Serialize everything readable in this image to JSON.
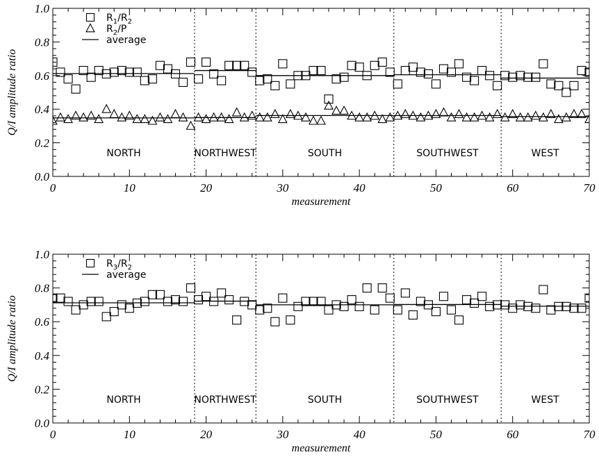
{
  "chart_data": [
    {
      "type": "scatter",
      "xlabel": "measurement",
      "ylabel": "Q/I amplitude ratio",
      "xlim": [
        0,
        70
      ],
      "ylim": [
        0.0,
        1.0
      ],
      "xticks": [
        "0",
        "10",
        "20",
        "30",
        "40",
        "50",
        "60",
        "70"
      ],
      "yticks": [
        "0.0",
        "0.2",
        "0.4",
        "0.6",
        "0.8",
        "1.0"
      ],
      "legend": [
        {
          "marker": "square",
          "label": "R",
          "sub1": "1",
          "sep": "/R",
          "sub2": "2"
        },
        {
          "marker": "triangle",
          "label": "R",
          "sub1": "2",
          "sep": "/P",
          "sub2": ""
        },
        {
          "marker": "line",
          "label": "average"
        }
      ],
      "regions": [
        {
          "label": "NORTH",
          "from": 0,
          "to": 18.5
        },
        {
          "label": "NORTHWEST",
          "from": 18.5,
          "to": 26.5
        },
        {
          "label": "SOUTH",
          "from": 26.5,
          "to": 44.5
        },
        {
          "label": "SOUTHWEST",
          "from": 44.5,
          "to": 58.5
        },
        {
          "label": "WEST",
          "from": 58.5,
          "to": 70
        }
      ],
      "series": [
        {
          "name": "R1/R2",
          "marker": "square",
          "x": [
            0,
            1,
            2,
            3,
            4,
            5,
            6,
            7,
            8,
            9,
            10,
            11,
            12,
            13,
            14,
            15,
            16,
            17,
            18,
            19,
            20,
            21,
            22,
            23,
            24,
            25,
            26,
            27,
            28,
            29,
            30,
            31,
            32,
            33,
            34,
            35,
            36,
            37,
            38,
            39,
            40,
            41,
            42,
            43,
            44,
            45,
            46,
            47,
            48,
            49,
            50,
            51,
            52,
            53,
            54,
            55,
            56,
            57,
            58,
            59,
            60,
            61,
            62,
            63,
            64,
            65,
            66,
            67,
            68,
            69,
            70
          ],
          "y": [
            0.68,
            0.62,
            0.58,
            0.52,
            0.63,
            0.59,
            0.63,
            0.61,
            0.62,
            0.63,
            0.62,
            0.62,
            0.57,
            0.58,
            0.66,
            0.64,
            0.61,
            0.56,
            0.68,
            0.58,
            0.68,
            0.61,
            0.57,
            0.66,
            0.66,
            0.66,
            0.62,
            0.57,
            0.58,
            0.54,
            0.67,
            0.55,
            0.6,
            0.6,
            0.63,
            0.63,
            0.46,
            0.58,
            0.59,
            0.66,
            0.65,
            0.6,
            0.66,
            0.68,
            0.62,
            0.55,
            0.63,
            0.65,
            0.62,
            0.61,
            0.55,
            0.64,
            0.62,
            0.67,
            0.59,
            0.57,
            0.63,
            0.6,
            0.54,
            0.6,
            0.59,
            0.6,
            0.59,
            0.59,
            0.67,
            0.55,
            0.54,
            0.5,
            0.54,
            0.63,
            0.62
          ]
        },
        {
          "name": "R2/P",
          "marker": "triangle",
          "x": [
            0,
            1,
            2,
            3,
            4,
            5,
            6,
            7,
            8,
            9,
            10,
            11,
            12,
            13,
            14,
            15,
            16,
            17,
            18,
            19,
            20,
            21,
            22,
            23,
            24,
            25,
            26,
            27,
            28,
            29,
            30,
            31,
            32,
            33,
            34,
            35,
            36,
            37,
            38,
            39,
            40,
            41,
            42,
            43,
            44,
            45,
            46,
            47,
            48,
            49,
            50,
            51,
            52,
            53,
            54,
            55,
            56,
            57,
            58,
            59,
            60,
            61,
            62,
            63,
            64,
            65,
            66,
            67,
            68,
            69,
            70
          ],
          "y": [
            0.33,
            0.35,
            0.34,
            0.36,
            0.35,
            0.36,
            0.34,
            0.4,
            0.37,
            0.35,
            0.36,
            0.34,
            0.34,
            0.33,
            0.35,
            0.34,
            0.37,
            0.35,
            0.3,
            0.35,
            0.34,
            0.35,
            0.35,
            0.34,
            0.38,
            0.35,
            0.36,
            0.35,
            0.35,
            0.37,
            0.34,
            0.37,
            0.36,
            0.35,
            0.33,
            0.33,
            0.42,
            0.39,
            0.39,
            0.36,
            0.35,
            0.35,
            0.36,
            0.34,
            0.35,
            0.36,
            0.37,
            0.36,
            0.35,
            0.36,
            0.37,
            0.38,
            0.35,
            0.37,
            0.35,
            0.35,
            0.36,
            0.35,
            0.37,
            0.35,
            0.37,
            0.35,
            0.35,
            0.36,
            0.35,
            0.37,
            0.34,
            0.35,
            0.37,
            0.37,
            0.34
          ]
        }
      ],
      "averages": [
        {
          "series": "R1/R2",
          "segments": [
            [
              0,
              18.5,
              0.612
            ],
            [
              18.5,
              26.5,
              0.63
            ],
            [
              26.5,
              44.5,
              0.6
            ],
            [
              44.5,
              58.5,
              0.605
            ],
            [
              58.5,
              70,
              0.585
            ]
          ]
        },
        {
          "series": "R2/P",
          "segments": [
            [
              0,
              18.5,
              0.348
            ],
            [
              18.5,
              26.5,
              0.35
            ],
            [
              26.5,
              44.5,
              0.362
            ],
            [
              44.5,
              58.5,
              0.362
            ],
            [
              58.5,
              70,
              0.356
            ]
          ]
        }
      ]
    },
    {
      "type": "scatter",
      "xlabel": "measurement",
      "ylabel": "Q/I amplitude ratio",
      "xlim": [
        0,
        70
      ],
      "ylim": [
        0.0,
        1.0
      ],
      "xticks": [
        "0",
        "10",
        "20",
        "30",
        "40",
        "50",
        "60",
        "70"
      ],
      "yticks": [
        "0.0",
        "0.2",
        "0.4",
        "0.6",
        "0.8",
        "1.0"
      ],
      "legend": [
        {
          "marker": "square",
          "label": "R",
          "sub1": "3",
          "sep": "/R",
          "sub2": "2"
        },
        {
          "marker": "line",
          "label": "average"
        }
      ],
      "regions": [
        {
          "label": "NORTH",
          "from": 0,
          "to": 18.5
        },
        {
          "label": "NORTHWEST",
          "from": 18.5,
          "to": 26.5
        },
        {
          "label": "SOUTH",
          "from": 26.5,
          "to": 44.5
        },
        {
          "label": "SOUTHWEST",
          "from": 44.5,
          "to": 58.5
        },
        {
          "label": "WEST",
          "from": 58.5,
          "to": 70
        }
      ],
      "series": [
        {
          "name": "R3/R2",
          "marker": "square",
          "x": [
            0,
            1,
            2,
            3,
            4,
            5,
            6,
            7,
            8,
            9,
            10,
            11,
            12,
            13,
            14,
            15,
            16,
            17,
            18,
            19,
            20,
            21,
            22,
            23,
            24,
            25,
            26,
            27,
            28,
            29,
            30,
            31,
            32,
            33,
            34,
            35,
            36,
            37,
            38,
            39,
            40,
            41,
            42,
            43,
            44,
            45,
            46,
            47,
            48,
            49,
            50,
            51,
            52,
            53,
            54,
            55,
            56,
            57,
            58,
            59,
            60,
            61,
            62,
            63,
            64,
            65,
            66,
            67,
            68,
            69,
            70
          ],
          "y": [
            0.74,
            0.74,
            0.72,
            0.67,
            0.7,
            0.72,
            0.72,
            0.63,
            0.66,
            0.7,
            0.68,
            0.71,
            0.72,
            0.76,
            0.76,
            0.72,
            0.73,
            0.72,
            0.8,
            0.73,
            0.75,
            0.72,
            0.77,
            0.73,
            0.61,
            0.72,
            0.7,
            0.67,
            0.68,
            0.6,
            0.74,
            0.61,
            0.69,
            0.72,
            0.72,
            0.72,
            0.67,
            0.7,
            0.69,
            0.73,
            0.69,
            0.8,
            0.67,
            0.8,
            0.74,
            0.67,
            0.77,
            0.64,
            0.72,
            0.7,
            0.66,
            0.75,
            0.67,
            0.61,
            0.73,
            0.71,
            0.75,
            0.69,
            0.7,
            0.7,
            0.68,
            0.7,
            0.69,
            0.68,
            0.79,
            0.67,
            0.69,
            0.69,
            0.68,
            0.68,
            0.74
          ]
        }
      ],
      "averages": [
        {
          "series": "R3/R2",
          "segments": [
            [
              0,
              18.5,
              0.712
            ],
            [
              18.5,
              26.5,
              0.722
            ],
            [
              26.5,
              44.5,
              0.7
            ],
            [
              44.5,
              58.5,
              0.702
            ],
            [
              58.5,
              70,
              0.692
            ]
          ]
        }
      ]
    }
  ]
}
